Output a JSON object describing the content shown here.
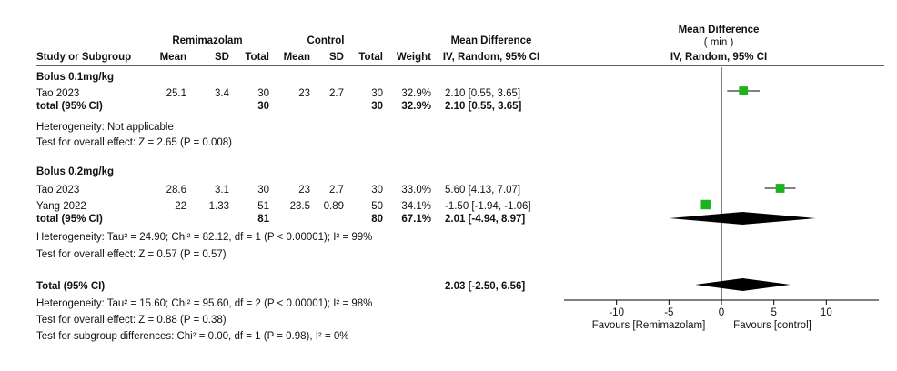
{
  "header": {
    "group1": "Remimazolam",
    "group2": "Control",
    "md_col": "Mean Difference",
    "plot_title": "Mean Difference",
    "plot_unit": "( min )",
    "study_col": "Study or Subgroup",
    "mean": "Mean",
    "sd": "SD",
    "total": "Total",
    "weight": "Weight",
    "method": "IV, Random, 95% CI",
    "plot_method": "IV, Random, 95% CI"
  },
  "subgroups": [
    {
      "name": "Bolus 0.1mg/kg",
      "studies": [
        {
          "study": "Tao 2023",
          "mean1": "25.1",
          "sd1": "3.4",
          "n1": "30",
          "mean2": "23",
          "sd2": "2.7",
          "n2": "30",
          "weight": "32.9%",
          "ci_text": "2.10 [0.55, 3.65]"
        }
      ],
      "total": {
        "label": "total (95% CI)",
        "n1": "30",
        "n2": "30",
        "weight": "32.9%",
        "ci_text": "2.10 [0.55, 3.65]"
      },
      "heterogeneity": "Heterogeneity: Not applicable",
      "overall": "Test for overall effect: Z = 2.65 (P = 0.008)"
    },
    {
      "name": "Bolus 0.2mg/kg",
      "studies": [
        {
          "study": "Tao 2023",
          "mean1": "28.6",
          "sd1": "3.1",
          "n1": "30",
          "mean2": "23",
          "sd2": "2.7",
          "n2": "30",
          "weight": "33.0%",
          "ci_text": "5.60 [4.13, 7.07]"
        },
        {
          "study": "Yang 2022",
          "mean1": "22",
          "sd1": "1.33",
          "n1": "51",
          "mean2": "23.5",
          "sd2": "0.89",
          "n2": "50",
          "weight": "34.1%",
          "ci_text": "-1.50 [-1.94, -1.06]"
        }
      ],
      "total": {
        "label": "total (95% CI)",
        "n1": "81",
        "n2": "80",
        "weight": "67.1%",
        "ci_text": "2.01 [-4.94, 8.97]"
      },
      "heterogeneity": "Heterogeneity: Tau² = 24.90; Chi² = 82.12, df = 1 (P < 0.00001); I² = 99%",
      "overall": "Test for overall effect: Z = 0.57 (P = 0.57)"
    }
  ],
  "grand_total": {
    "label": "Total (95% CI)",
    "ci_text": "2.03 [-2.50, 6.56]",
    "heterogeneity": "Heterogeneity: Tau² = 15.60; Chi² = 95.60, df = 2 (P < 0.00001); I² = 98%",
    "overall": "Test for overall effect: Z = 0.88 (P = 0.38)",
    "subgroup_diff": "Test for subgroup differences: Chi² = 0.00, df = 1 (P = 0.98), I² = 0%"
  },
  "axis": {
    "xlim": [
      -15,
      15
    ],
    "ticks": [
      "-10",
      "-5",
      "0",
      "5",
      "10"
    ],
    "tick_values": [
      -10,
      -5,
      0,
      5,
      10
    ],
    "favours_left": "Favours [Remimazolam]",
    "favours_right": "Favours [control]"
  },
  "colors": {
    "square": "#1db31d",
    "diamond": "#000000",
    "line": "#000000"
  },
  "chart_data": {
    "type": "forest",
    "xlim": [
      -15,
      15
    ],
    "studies": [
      {
        "subgroup": "Bolus 0.1mg/kg",
        "study": "Tao 2023",
        "md": 2.1,
        "lo": 0.55,
        "hi": 3.65,
        "weight": 32.9
      },
      {
        "subgroup": "Bolus 0.2mg/kg",
        "study": "Tao 2023",
        "md": 5.6,
        "lo": 4.13,
        "hi": 7.07,
        "weight": 33.0
      },
      {
        "subgroup": "Bolus 0.2mg/kg",
        "study": "Yang 2022",
        "md": -1.5,
        "lo": -1.94,
        "hi": -1.06,
        "weight": 34.1
      }
    ],
    "pooled": [
      {
        "label": "Bolus 0.2mg/kg total",
        "md": 2.01,
        "lo": -4.94,
        "hi": 8.97
      },
      {
        "label": "Total",
        "md": 2.03,
        "lo": -2.5,
        "hi": 6.56
      }
    ]
  }
}
